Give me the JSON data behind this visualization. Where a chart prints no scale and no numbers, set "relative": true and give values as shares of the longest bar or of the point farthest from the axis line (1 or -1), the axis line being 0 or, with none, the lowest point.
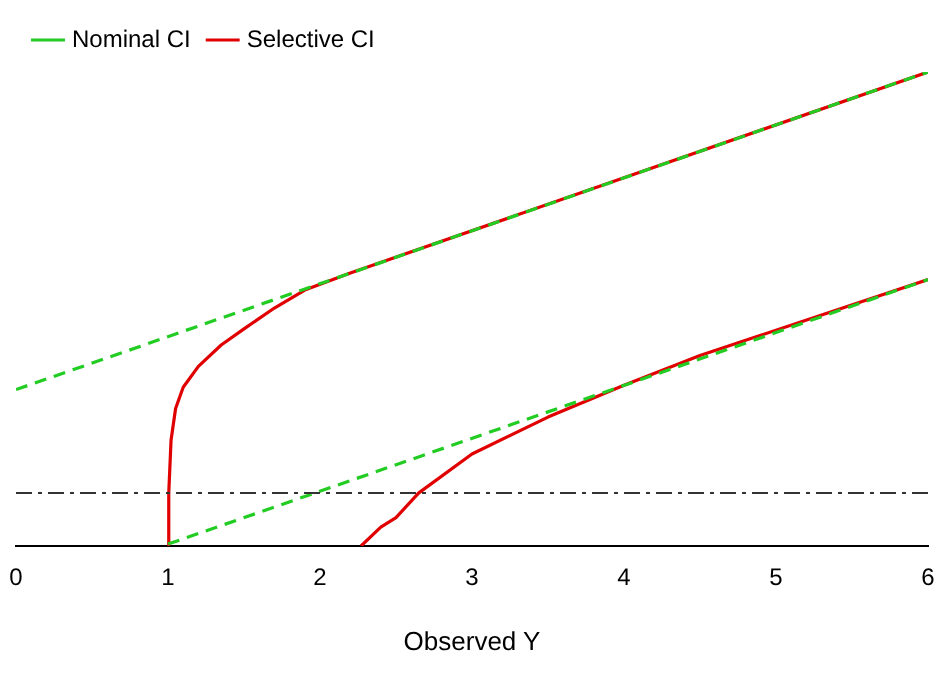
{
  "chart_data": {
    "type": "line",
    "relative": true,
    "xlabel": "Observed Y",
    "xlim": [
      0,
      6
    ],
    "xticks": [
      0,
      1,
      2,
      3,
      4,
      5,
      6
    ],
    "grid": false,
    "legend": "top left",
    "marker": "none",
    "series": [
      {
        "name": "Selective CI",
        "color": "#e00000",
        "line_style": "solid",
        "x": [
          1.0,
          1.005,
          1.02,
          1.05,
          1.1,
          1.2,
          1.35,
          1.5,
          1.7,
          1.9,
          2.2,
          6
        ],
        "values": [
          0,
          0.112,
          0.223,
          0.29,
          0.335,
          0.379,
          0.424,
          0.458,
          0.502,
          0.54,
          0.576,
          1.0
        ]
      },
      {
        "color": "#e00000",
        "line_style": "solid",
        "x": [
          2.27,
          2.4,
          2.5,
          2.65,
          3,
          3.5,
          4,
          4.5,
          6
        ],
        "values": [
          0,
          0.04,
          0.06,
          0.112,
          0.194,
          0.272,
          0.339,
          0.402,
          0.562
        ]
      },
      {
        "name": "Nominal CI",
        "color": "#22cc22",
        "line_style": "dashed",
        "x": [
          0,
          6
        ],
        "values": [
          0.33,
          1.0
        ]
      },
      {
        "color": "#22cc22",
        "line_style": "dashed",
        "x": [
          1,
          6
        ],
        "values": [
          0.004,
          0.562
        ]
      }
    ],
    "ref_lines": [
      {
        "axis": "y",
        "value": 0.112,
        "color": "#333333"
      }
    ]
  }
}
